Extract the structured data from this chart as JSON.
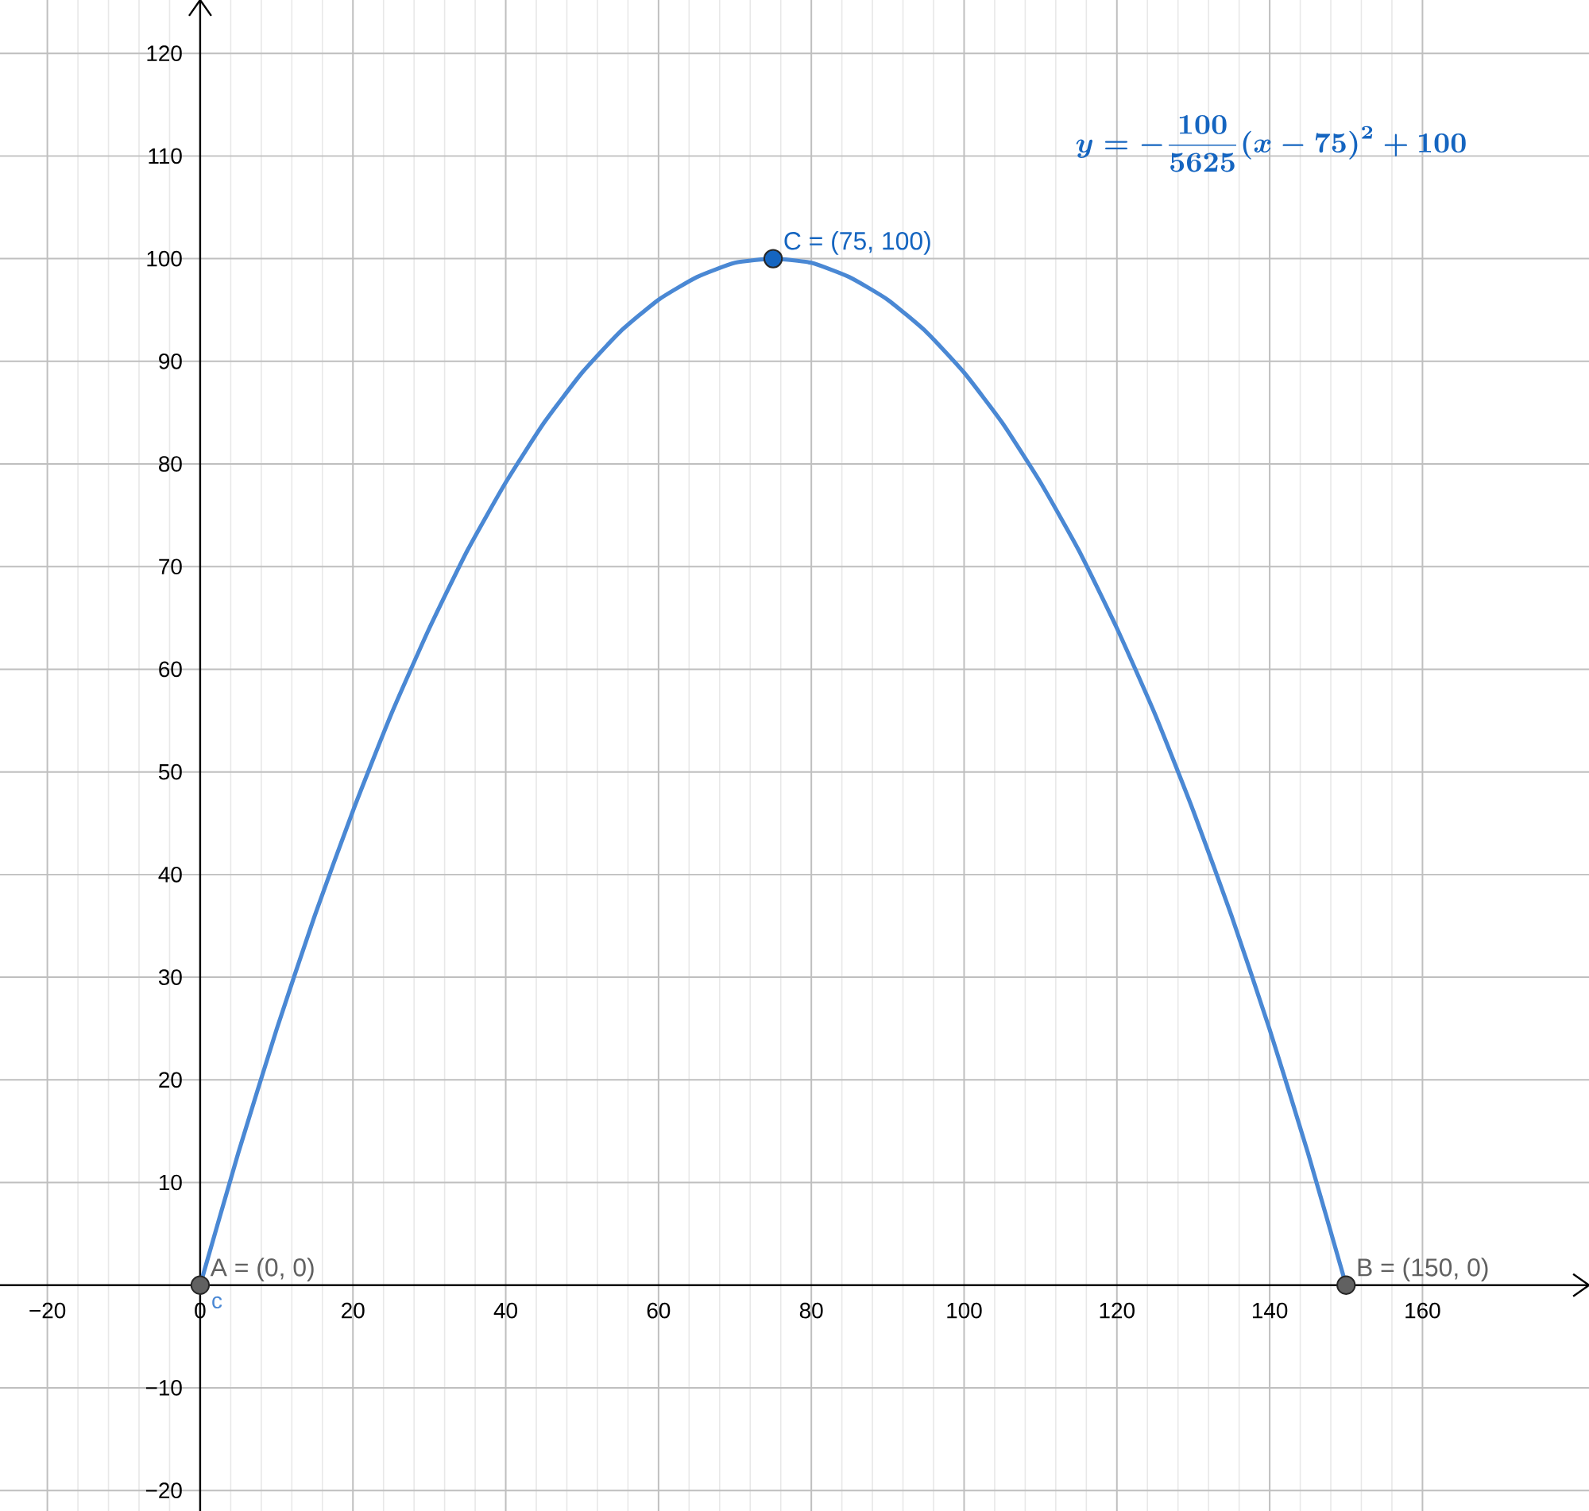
{
  "chart_data": {
    "type": "line",
    "xlim": [
      -26.2,
      181.8
    ],
    "ylim": [
      -22,
      125.2
    ],
    "xticks": [
      {
        "value": -20,
        "label": "−20"
      },
      0,
      20,
      40,
      60,
      80,
      100,
      120,
      140,
      160
    ],
    "yticks": [
      {
        "value": -20,
        "label": "−20"
      },
      {
        "value": -10,
        "label": "−10"
      },
      10,
      20,
      30,
      40,
      50,
      60,
      70,
      80,
      90,
      100,
      110,
      120
    ],
    "grid": true,
    "series": [
      {
        "name": "c",
        "color": "#4a88d4",
        "x": [
          0,
          5,
          10,
          15,
          20,
          25,
          30,
          35,
          40,
          45,
          50,
          55,
          60,
          65,
          70,
          75,
          80,
          85,
          90,
          95,
          100,
          105,
          110,
          115,
          120,
          125,
          130,
          135,
          140,
          145,
          150
        ],
        "values": [
          0,
          12.9,
          24.9,
          36,
          46.2,
          55.6,
          64,
          71.6,
          78.2,
          84,
          88.9,
          92.9,
          96,
          98.2,
          99.6,
          100,
          99.6,
          98.2,
          96,
          92.9,
          88.9,
          84,
          78.2,
          71.6,
          64,
          55.6,
          46.2,
          36,
          24.9,
          12.9,
          0
        ]
      },
      {
        "type": "scatter",
        "marker": "circle",
        "color": "#616161",
        "x": [
          0,
          150
        ],
        "values": [
          0,
          0
        ]
      },
      {
        "type": "scatter",
        "marker": "circle",
        "color": "#1565c0",
        "x": [
          75
        ],
        "values": [
          100
        ]
      }
    ],
    "annotations": [
      {
        "text": "A = (0, 0)",
        "x": 0,
        "y": 0
      },
      {
        "text": "B = (150, 0)",
        "x": 150,
        "y": 0
      },
      {
        "text": "C = (75, 100)",
        "x": 75,
        "y": 100
      },
      "y=-\\frac{100}{5625}(x-75)^2+100"
    ]
  }
}
